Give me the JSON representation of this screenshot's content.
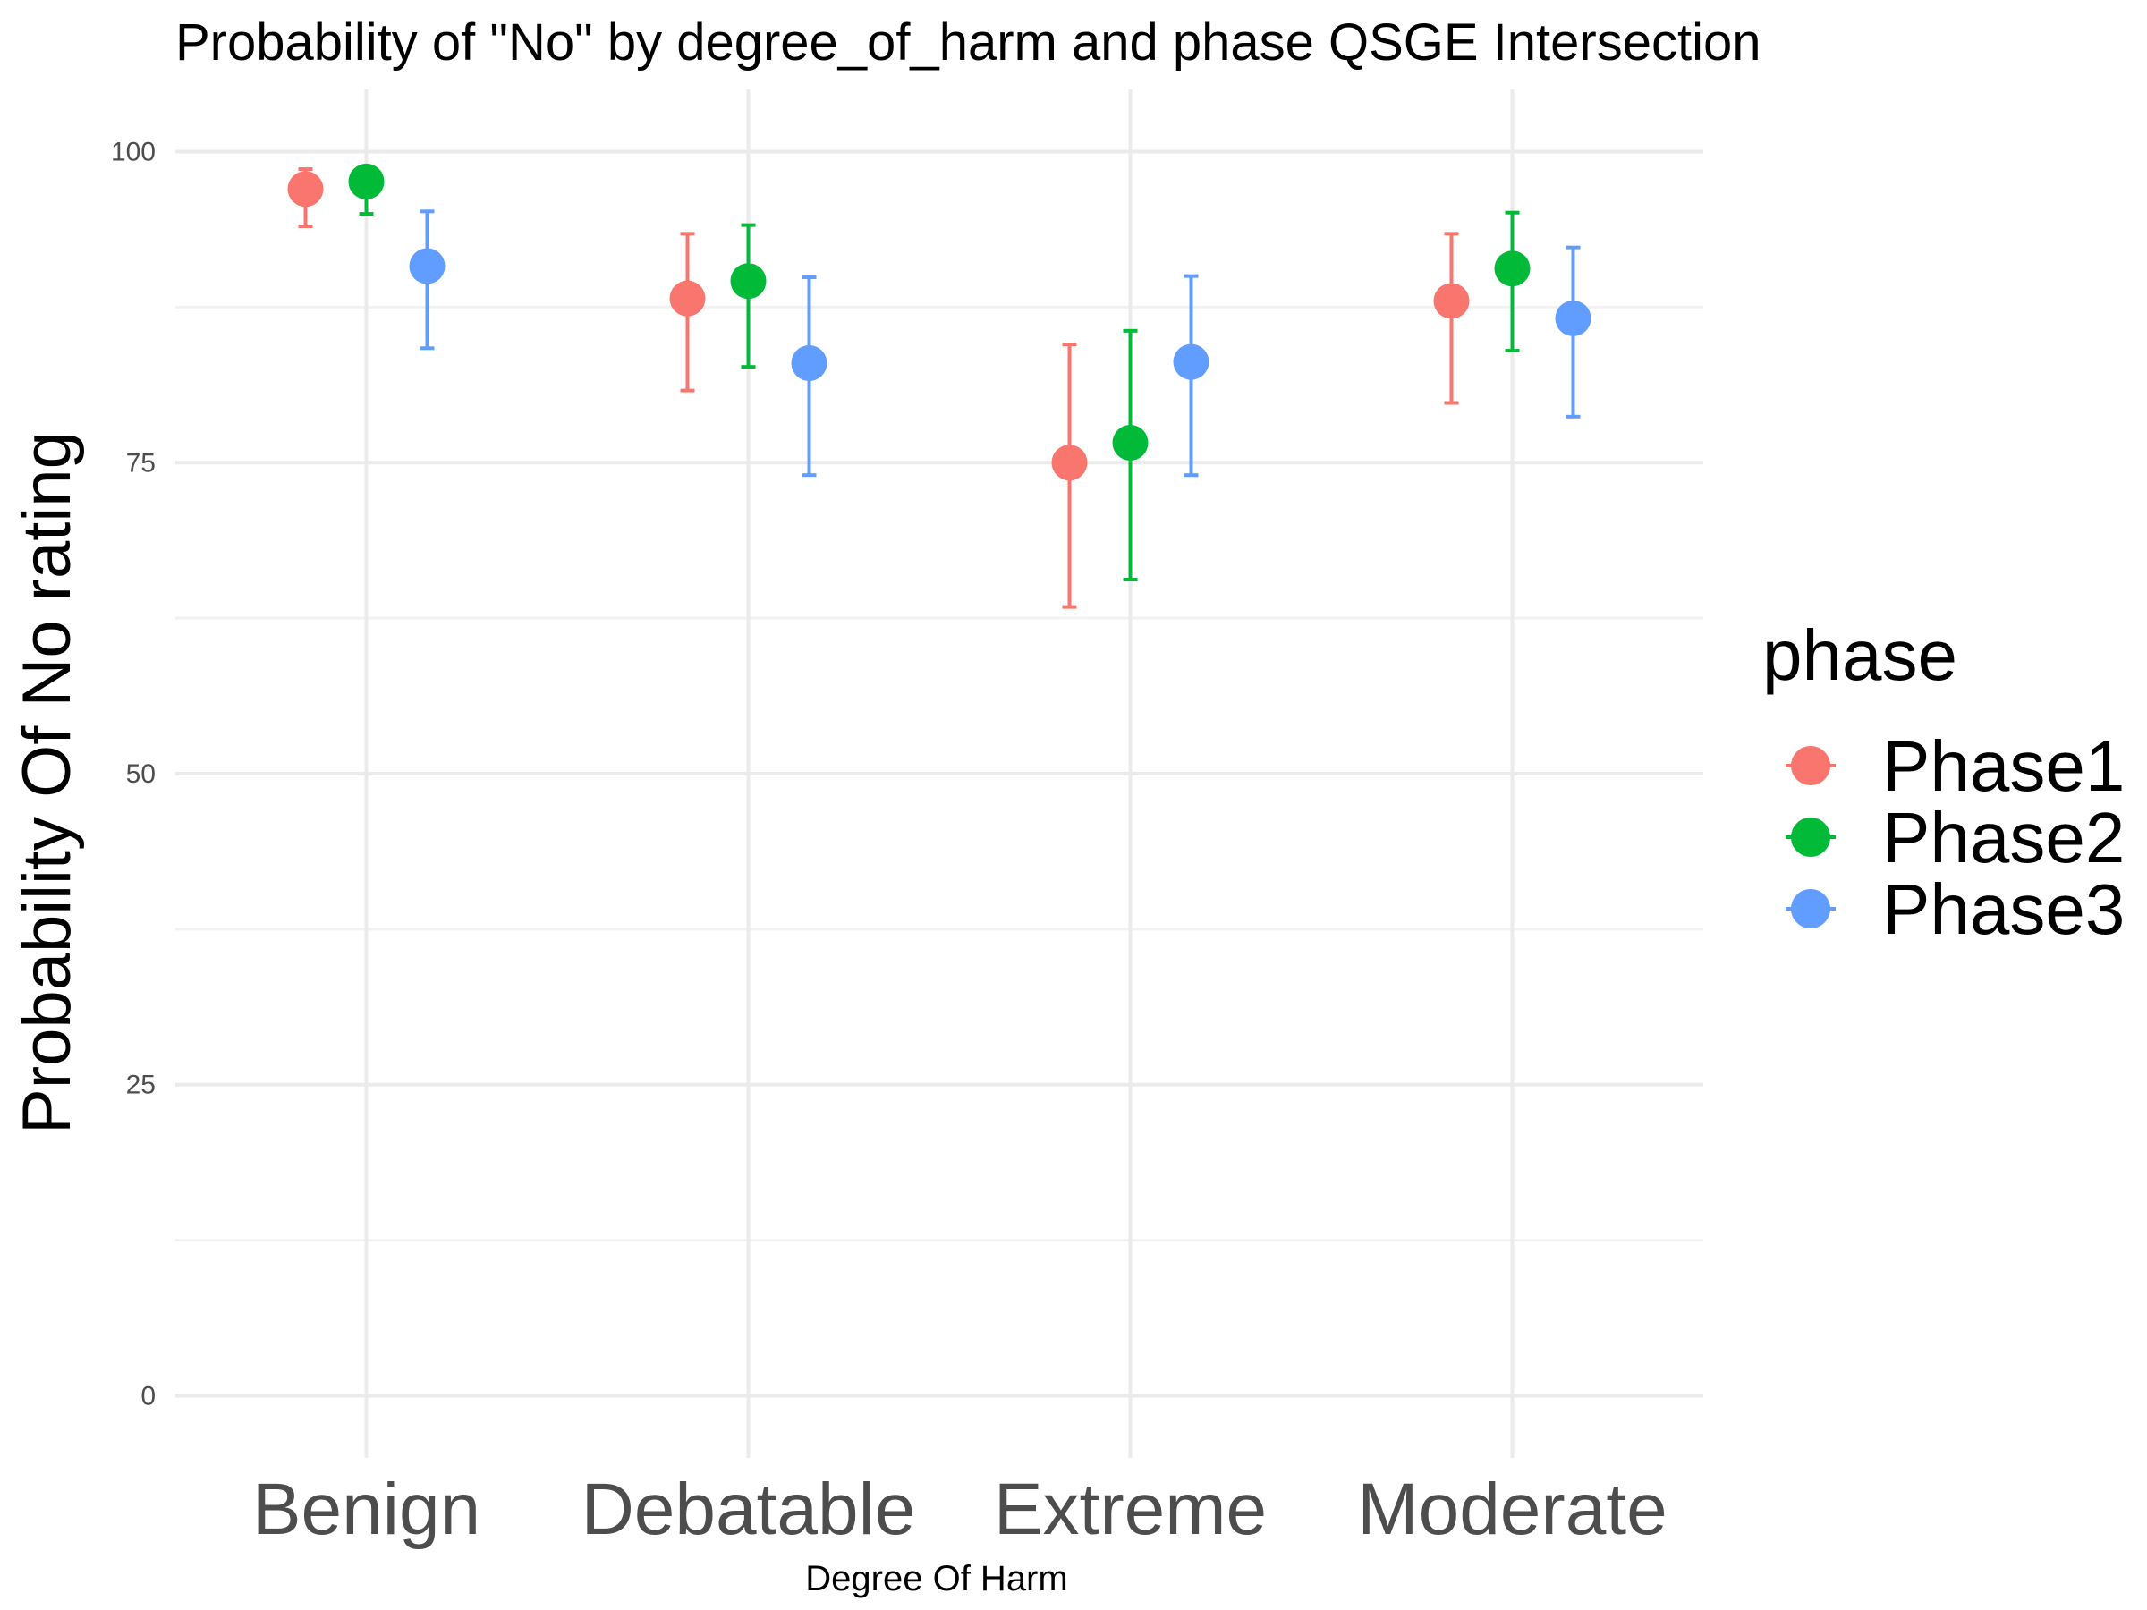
{
  "chart_data": {
    "type": "scatter",
    "title": "Probability of \"No\" by degree_of_harm and  phase  QSGE Intersection",
    "xlabel": "Degree Of Harm",
    "ylabel": "Probability Of No rating",
    "categories": [
      "Benign",
      "Debatable",
      "Extreme",
      "Moderate"
    ],
    "ylim": [
      -5,
      105
    ],
    "yticks": [
      0,
      25,
      50,
      75,
      100
    ],
    "grid": true,
    "legend": {
      "title": "phase",
      "placement": "right"
    },
    "series": [
      {
        "name": "Phase1",
        "color": "#F8766D",
        "values": [
          97.0,
          88.2,
          75.0,
          88.0
        ],
        "lower": [
          94.0,
          80.8,
          63.4,
          79.8
        ],
        "upper": [
          98.6,
          93.4,
          84.5,
          93.4
        ]
      },
      {
        "name": "Phase2",
        "color": "#00BA38",
        "values": [
          97.6,
          89.6,
          76.6,
          90.6
        ],
        "lower": [
          95.0,
          82.7,
          65.6,
          84.0
        ],
        "upper": [
          98.8,
          94.1,
          85.6,
          95.1
        ]
      },
      {
        "name": "Phase3",
        "color": "#619CFF",
        "values": [
          90.8,
          83.0,
          83.1,
          86.6
        ],
        "lower": [
          84.2,
          74.0,
          74.0,
          78.7
        ],
        "upper": [
          95.2,
          89.9,
          90.0,
          92.3
        ]
      }
    ]
  }
}
